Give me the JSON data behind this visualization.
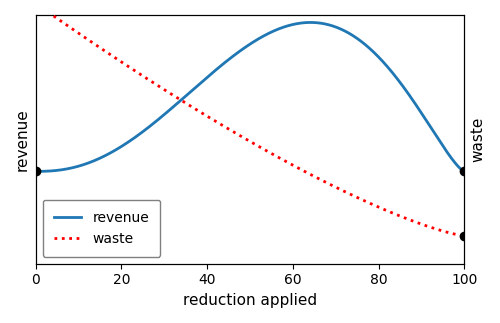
{
  "xlabel": "reduction applied",
  "ylabel_left": "revenue",
  "ylabel_right": "waste",
  "legend_revenue": "revenue",
  "legend_waste": "waste",
  "revenue_color": "#1f77b4",
  "waste_color": "red",
  "figsize": [
    5.0,
    3.23
  ],
  "dpi": 100,
  "rev_a": 2.5,
  "rev_b": 1.4,
  "rev_ylim": [
    -0.62,
    1.05
  ],
  "waste_power": 1.3,
  "waste_ylim": [
    -0.12,
    0.95
  ]
}
